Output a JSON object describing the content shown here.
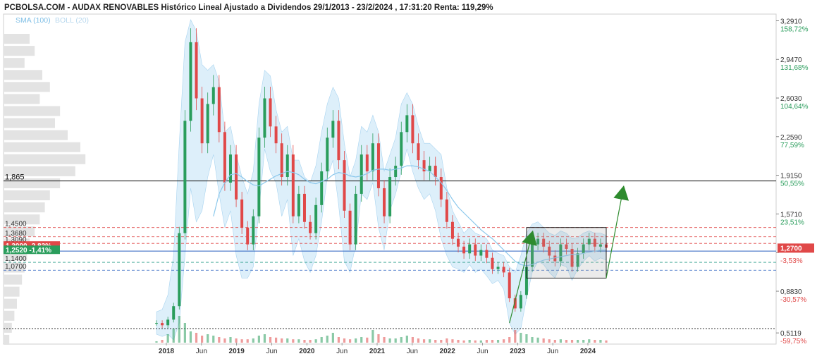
{
  "title": "PCBOLSA.COM - AUDAX RENOVABLES Histórico Lineal Ajustado a Dividendos 29/1/2013 - 23/2/2024 , 17:31:20 Renta: 119,29%",
  "legend": {
    "sma": "SMA (100)",
    "boll": "BOLL (20)"
  },
  "colors": {
    "up": "#2a9d5c",
    "down": "#e04848",
    "band": "#cfe8f8",
    "sma": "#8cc8ec",
    "arrow": "#2e8b2e",
    "current": "#e04848",
    "label_green": "#2a9d5c"
  },
  "chart_data": {
    "type": "candlestick",
    "ylim": [
      0.45,
      3.3
    ],
    "price_ticks": [
      {
        "value": 3.291,
        "label": "3,2910",
        "pct": "158,72%"
      },
      {
        "value": 2.947,
        "label": "2,9470",
        "pct": "131,68%"
      },
      {
        "value": 2.603,
        "label": "2,6030",
        "pct": "104,64%"
      },
      {
        "value": 2.259,
        "label": "2,2590",
        "pct": "77,59%"
      },
      {
        "value": 1.915,
        "label": "1,9150",
        "pct": "50,55%"
      },
      {
        "value": 1.571,
        "label": "1,5710",
        "pct": "23,51%"
      },
      {
        "value": 1.227,
        "label": "",
        "pct": "-3,53%"
      },
      {
        "value": 0.883,
        "label": "0,8830",
        "pct": "-30,57%"
      },
      {
        "value": 0.5119,
        "label": "0,5119",
        "pct": "-59,75%"
      }
    ],
    "x_ticks": [
      {
        "label": "2018",
        "major": true
      },
      {
        "label": "Jun",
        "major": false
      },
      {
        "label": "2019",
        "major": true
      },
      {
        "label": "Jun",
        "major": false
      },
      {
        "label": "2020",
        "major": true
      },
      {
        "label": "Jun",
        "major": false
      },
      {
        "label": "2021",
        "major": true
      },
      {
        "label": "Jun",
        "major": false
      },
      {
        "label": "2022",
        "major": true
      },
      {
        "label": "Jun",
        "major": false
      },
      {
        "label": "2023",
        "major": true
      },
      {
        "label": "Jun",
        "major": false
      },
      {
        "label": "2024",
        "major": true
      }
    ],
    "current_price": {
      "value": 1.27,
      "label": "1,2700"
    },
    "levels": [
      {
        "value": 1.865,
        "label": "1,865",
        "style": "solid-black"
      },
      {
        "value": 1.45,
        "label": "1,4500",
        "style": "dashed-red"
      },
      {
        "value": 1.368,
        "label": "1,3680",
        "style": "dashed-red"
      },
      {
        "value": 1.309,
        "label": "1,3090",
        "style": "dashed-red"
      },
      {
        "value": 1.14,
        "label": "1,1400",
        "style": "dashed-teal"
      },
      {
        "value": 1.07,
        "label": "1,0700",
        "style": "dashed-blue"
      },
      {
        "value": 0.55,
        "label": "",
        "style": "dotted-black"
      }
    ],
    "price_tags": [
      {
        "value": 1.29,
        "text": "1,3090 -2,83%",
        "color": "#e04848"
      },
      {
        "value": 1.252,
        "text": "1,2520 -1,41%",
        "color": "#2a9d5c"
      }
    ],
    "series": [
      {
        "name": "price",
        "values": [
          0.6,
          0.58,
          0.63,
          0.75,
          1.4,
          2.4,
          3.1,
          2.6,
          2.2,
          2.55,
          2.7,
          2.3,
          1.85,
          2.1,
          1.7,
          1.45,
          1.3,
          1.55,
          2.25,
          2.6,
          2.35,
          2.2,
          1.9,
          2.1,
          1.55,
          1.75,
          1.5,
          1.4,
          1.65,
          1.95,
          2.25,
          2.4,
          2.05,
          1.6,
          1.3,
          1.75,
          2.1,
          1.95,
          2.2,
          1.8,
          1.55,
          1.9,
          2.0,
          2.3,
          2.45,
          2.2,
          2.05,
          1.95,
          2.0,
          1.9,
          1.7,
          1.5,
          1.35,
          1.28,
          1.22,
          1.3,
          1.2,
          1.25,
          1.18,
          1.08,
          1.1,
          1.05,
          0.82,
          0.73,
          0.85,
          1.1,
          1.3,
          1.35,
          1.28,
          1.2,
          1.15,
          1.3,
          1.26,
          1.1,
          1.22,
          1.3,
          1.35,
          1.28,
          1.3,
          1.27
        ]
      },
      {
        "name": "sma",
        "values": [
          null,
          null,
          null,
          null,
          null,
          null,
          null,
          null,
          null,
          null,
          1.55,
          1.75,
          1.85,
          1.92,
          1.93,
          1.9,
          1.86,
          1.83,
          1.82,
          1.85,
          1.88,
          1.91,
          1.93,
          1.95,
          1.94,
          1.92,
          1.88,
          1.85,
          1.84,
          1.86,
          1.88,
          1.92,
          1.94,
          1.93,
          1.91,
          1.9,
          1.91,
          1.93,
          1.96,
          1.97,
          1.97,
          1.96,
          1.97,
          1.98,
          2.0,
          2.0,
          1.99,
          1.97,
          1.95,
          1.9,
          1.85,
          1.78,
          1.7,
          1.63,
          1.58,
          1.53,
          1.48,
          1.43,
          1.39,
          1.35,
          1.3,
          1.25,
          1.2,
          1.15,
          1.12,
          1.11,
          1.12,
          1.14,
          1.16,
          1.17,
          1.18,
          1.19,
          1.2,
          1.21,
          1.21,
          1.22,
          1.23,
          1.24,
          1.25,
          1.25
        ]
      },
      {
        "name": "boll_upper",
        "values": [
          0.7,
          0.72,
          0.85,
          1.2,
          2.2,
          3.1,
          3.3,
          3.2,
          2.9,
          2.85,
          2.9,
          2.75,
          2.3,
          2.35,
          2.1,
          1.9,
          1.75,
          1.95,
          2.55,
          2.85,
          2.8,
          2.5,
          2.3,
          2.35,
          2.05,
          2.05,
          1.9,
          1.85,
          2.0,
          2.3,
          2.55,
          2.7,
          2.6,
          2.2,
          1.9,
          2.05,
          2.35,
          2.3,
          2.45,
          2.3,
          1.95,
          2.1,
          2.25,
          2.55,
          2.65,
          2.55,
          2.35,
          2.2,
          2.2,
          2.15,
          2.1,
          1.8,
          1.6,
          1.5,
          1.4,
          1.45,
          1.4,
          1.38,
          1.35,
          1.25,
          1.22,
          1.2,
          1.1,
          1.05,
          1.2,
          1.4,
          1.48,
          1.5,
          1.45,
          1.4,
          1.38,
          1.42,
          1.4,
          1.35,
          1.36,
          1.4,
          1.42,
          1.4,
          1.4,
          1.38
        ]
      },
      {
        "name": "boll_lower",
        "values": [
          0.5,
          0.48,
          0.5,
          0.45,
          0.6,
          1.2,
          1.8,
          1.5,
          1.6,
          1.9,
          2.1,
          1.75,
          1.45,
          1.6,
          1.2,
          1.0,
          1.0,
          1.1,
          1.6,
          2.15,
          1.95,
          1.85,
          1.55,
          1.7,
          1.2,
          1.35,
          1.15,
          1.05,
          1.2,
          1.5,
          1.9,
          2.05,
          1.65,
          1.15,
          1.05,
          1.3,
          1.75,
          1.7,
          1.85,
          1.45,
          1.25,
          1.6,
          1.75,
          1.95,
          2.15,
          1.95,
          1.8,
          1.7,
          1.75,
          1.6,
          1.35,
          1.2,
          1.1,
          1.08,
          1.05,
          1.12,
          1.05,
          1.08,
          1.02,
          0.95,
          0.98,
          0.9,
          0.6,
          0.5,
          0.55,
          0.82,
          1.05,
          1.15,
          1.12,
          1.05,
          1.0,
          1.12,
          1.1,
          0.98,
          1.08,
          1.15,
          1.2,
          1.15,
          1.18,
          1.16
        ]
      }
    ],
    "volume": [
      0.05,
      0.1,
      0.3,
      0.5,
      0.95,
      0.7,
      0.4,
      0.35,
      0.25,
      0.3,
      0.25,
      0.2,
      0.15,
      0.2,
      0.15,
      0.12,
      0.12,
      0.15,
      0.25,
      0.3,
      0.2,
      0.18,
      0.15,
      0.15,
      0.12,
      0.12,
      0.1,
      0.1,
      0.12,
      0.2,
      0.25,
      0.35,
      0.2,
      0.15,
      0.12,
      0.15,
      0.2,
      0.18,
      0.45,
      0.3,
      0.2,
      0.15,
      0.15,
      0.2,
      0.25,
      0.2,
      0.15,
      0.12,
      0.12,
      0.1,
      0.1,
      0.15,
      0.12,
      0.1,
      0.08,
      0.1,
      0.08,
      0.08,
      0.1,
      0.1,
      0.1,
      0.12,
      0.2,
      0.45,
      0.35,
      0.3,
      0.2,
      0.18,
      0.15,
      0.12,
      0.1,
      0.12,
      0.1,
      0.1,
      0.1,
      0.1,
      0.12,
      0.1,
      0.1,
      0.08
    ],
    "volume_profile": [
      0.1,
      0.12,
      0.08,
      0.15,
      0.18,
      0.14,
      0.22,
      0.2,
      0.25,
      0.3,
      0.32,
      0.28,
      0.22,
      0.18,
      0.16,
      0.14,
      0.12,
      0.1,
      0.09,
      0.08,
      0.07,
      0.06,
      0.05,
      0.04,
      0.03,
      0.02
    ],
    "box": {
      "x_from_index": 65,
      "x_to_index": 79,
      "y_top": 1.45,
      "y_bottom": 1.0
    },
    "arrows": [
      {
        "from": [
          62,
          0.6
        ],
        "to": [
          66,
          1.4
        ]
      },
      {
        "from": [
          79,
          1.0
        ],
        "to": [
          82,
          1.8
        ]
      }
    ]
  }
}
